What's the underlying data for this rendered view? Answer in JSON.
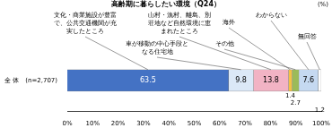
{
  "chart_data": {
    "type": "bar",
    "title": "高齢期に暮らしたい環境（Q24）",
    "xlabel": "(%)",
    "orientation": "horizontal",
    "stacked": true,
    "data_labels": true,
    "grid": false,
    "categories": [
      "全 体　(n=2,707)"
    ],
    "series": [
      {
        "name": "文化・商業施設が豊富で、公共交通機関が充実したところ",
        "color": "#4472c4",
        "values": [
          63.5
        ]
      },
      {
        "name": "車が移動の中心手段となる住宅地",
        "color": "#dbe8f7",
        "values": [
          9.8
        ]
      },
      {
        "name": "山村・漁村、離島、別荘地など自然環境に恵まれたところ",
        "color": "#f2b3c4",
        "values": [
          13.8
        ]
      },
      {
        "name": "海外",
        "color": "#f5c242",
        "values": [
          1.4
        ]
      },
      {
        "name": "その他",
        "color": "#9bbb59",
        "values": [
          2.7
        ]
      },
      {
        "name": "わからない",
        "color": "#c5d9f1",
        "values": [
          7.6
        ]
      },
      {
        "name": "無回答",
        "color": "#ffffff",
        "values": [
          1.2
        ]
      }
    ],
    "xlim": [
      0,
      100
    ],
    "xticks": [
      {
        "value": 0,
        "label": "0%"
      },
      {
        "value": 10,
        "label": "10%"
      },
      {
        "value": 20,
        "label": "20%"
      },
      {
        "value": 30,
        "label": "30%"
      },
      {
        "value": 40,
        "label": "40%"
      },
      {
        "value": 50,
        "label": "50%"
      },
      {
        "value": 60,
        "label": "60%"
      },
      {
        "value": 70,
        "label": "70%"
      },
      {
        "value": 80,
        "label": "80%"
      },
      {
        "value": 90,
        "label": "90%"
      },
      {
        "value": 100,
        "label": "100%"
      }
    ]
  }
}
